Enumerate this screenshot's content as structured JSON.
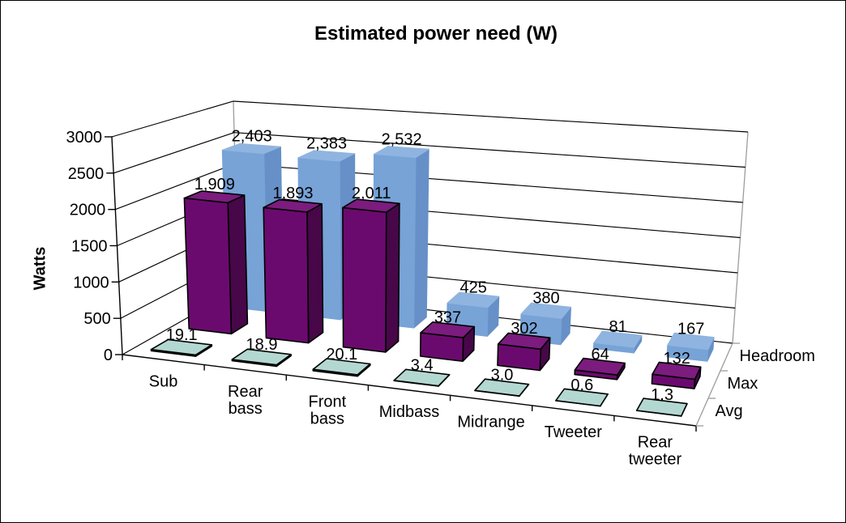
{
  "title": "Estimated power need (W)",
  "y_axis": {
    "title": "Watts",
    "ticks": [
      "0",
      "500",
      "1000",
      "1500",
      "2000",
      "2500",
      "3000"
    ],
    "min": 0,
    "max": 3000,
    "step": 500
  },
  "series_axis": {
    "labels_front_to_back": [
      "Avg",
      "Max",
      "Headroom"
    ]
  },
  "chart_data": {
    "type": "bar",
    "subtype": "3d-column",
    "title": "Estimated power need (W)",
    "ylabel": "Watts",
    "ylim": [
      0,
      3000
    ],
    "grid": true,
    "legend_position": "series-depth-axis-right",
    "categories": [
      "Sub",
      "Rear bass",
      "Front bass",
      "Midbass",
      "Midrange",
      "Tweeter",
      "Rear tweeter"
    ],
    "series": [
      {
        "name": "Avg",
        "values": [
          19.1,
          18.9,
          20.1,
          3.4,
          3.0,
          0.6,
          1.3
        ],
        "labels": [
          "19.1",
          "18.9",
          "20.1",
          "3.4",
          "3.0",
          "0.6",
          "1.3"
        ],
        "color_top": "#b3d8d2",
        "color_front": "#9fcac2",
        "color_side": "#8fbdb4",
        "outline": "#000000"
      },
      {
        "name": "Max",
        "values": [
          1909,
          1893,
          2011,
          337,
          302,
          64,
          132
        ],
        "labels": [
          "1,909",
          "1,893",
          "2,011",
          "337",
          "302",
          "64",
          "132"
        ],
        "color_top": "#7b1c7e",
        "color_front": "#6b0a6e",
        "color_side": "#470749",
        "outline": "#000000"
      },
      {
        "name": "Headroom",
        "values": [
          2403,
          2383,
          2532,
          425,
          380,
          81,
          167
        ],
        "labels": [
          "2,403",
          "2,383",
          "2,532",
          "425",
          "380",
          "81",
          "167"
        ],
        "color_top": "#8fb4e0",
        "color_front": "#77a3d7",
        "color_side": "#6690c7",
        "outline": null
      }
    ]
  }
}
